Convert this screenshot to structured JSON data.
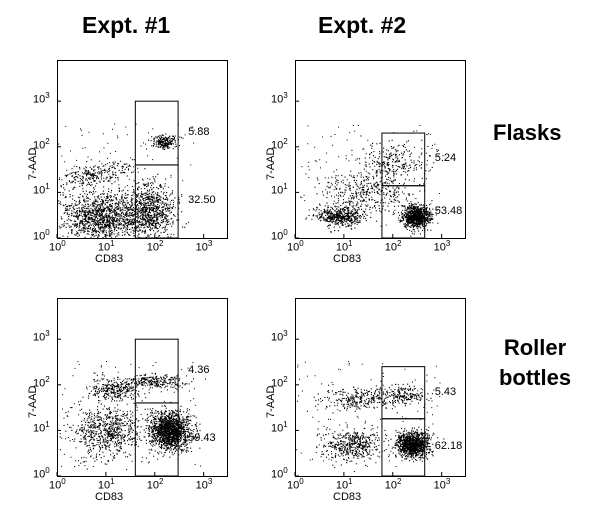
{
  "columns": [
    "Expt. #1",
    "Expt. #2"
  ],
  "rows": [
    "Flasks",
    "Roller\nbottles"
  ],
  "chart_data": [
    {
      "type": "scatter",
      "panel": "Flasks / Expt. #1",
      "xlabel": "CD83",
      "ylabel": "7-AAD",
      "xscale": "log",
      "yscale": "log",
      "xlim": [
        1,
        3000
      ],
      "ylim": [
        1,
        8000
      ],
      "xticks": [
        "10",
        "10",
        "10",
        "10"
      ],
      "xtick_exponents": [
        "0",
        "1",
        "2",
        "3"
      ],
      "yticks": [
        "10",
        "10",
        "10",
        "10"
      ],
      "ytick_exponents": [
        "0",
        "1",
        "2",
        "3"
      ],
      "gates": [
        {
          "x": [
            40,
            300
          ],
          "y": [
            40,
            1000
          ],
          "percent": "5.88"
        },
        {
          "x": [
            40,
            300
          ],
          "y": [
            1,
            40
          ],
          "percent": "32.50"
        }
      ],
      "populations": [
        {
          "cx": 8,
          "cy": 3,
          "sx": 0.42,
          "sy": 0.28,
          "n": 1300
        },
        {
          "cx": 80,
          "cy": 4,
          "sx": 0.25,
          "sy": 0.28,
          "n": 800
        },
        {
          "cx": 5,
          "cy": 25,
          "sx": 0.38,
          "sy": 0.12,
          "n": 260,
          "slope": 0.18
        },
        {
          "cx": 150,
          "cy": 130,
          "sx": 0.12,
          "sy": 0.08,
          "n": 200
        }
      ]
    },
    {
      "type": "scatter",
      "panel": "Flasks / Expt. #2",
      "xlabel": "CD83",
      "ylabel": "7-AAD",
      "xscale": "log",
      "yscale": "log",
      "xlim": [
        1,
        3000
      ],
      "ylim": [
        1,
        8000
      ],
      "xticks": [
        "10",
        "10",
        "10",
        "10"
      ],
      "xtick_exponents": [
        "0",
        "1",
        "2",
        "3"
      ],
      "yticks": [
        "10",
        "10",
        "10",
        "10"
      ],
      "ytick_exponents": [
        "0",
        "1",
        "2",
        "3"
      ],
      "gates": [
        {
          "x": [
            60,
            450
          ],
          "y": [
            14,
            200
          ],
          "percent": "5.24"
        },
        {
          "x": [
            60,
            450
          ],
          "y": [
            1,
            14
          ],
          "percent": "53.48"
        }
      ],
      "populations": [
        {
          "cx": 8,
          "cy": 3,
          "sx": 0.22,
          "sy": 0.1,
          "n": 500
        },
        {
          "cx": 300,
          "cy": 3,
          "sx": 0.14,
          "sy": 0.12,
          "n": 900
        },
        {
          "cx": 30,
          "cy": 10,
          "sx": 0.45,
          "sy": 0.25,
          "n": 400
        },
        {
          "cx": 100,
          "cy": 50,
          "sx": 0.35,
          "sy": 0.2,
          "n": 250
        }
      ]
    },
    {
      "type": "scatter",
      "panel": "Roller bottles / Expt. #1",
      "xlabel": "CD83",
      "ylabel": "7-AAD",
      "xscale": "log",
      "yscale": "log",
      "xlim": [
        1,
        3000
      ],
      "ylim": [
        1,
        8000
      ],
      "xticks": [
        "10",
        "10",
        "10",
        "10"
      ],
      "xtick_exponents": [
        "0",
        "1",
        "2",
        "3"
      ],
      "yticks": [
        "10",
        "10",
        "10",
        "10"
      ],
      "ytick_exponents": [
        "0",
        "1",
        "2",
        "3"
      ],
      "gates": [
        {
          "x": [
            40,
            300
          ],
          "y": [
            40,
            1000
          ],
          "percent": "4.36"
        },
        {
          "x": [
            40,
            300
          ],
          "y": [
            1,
            40
          ],
          "percent": "59.43"
        }
      ],
      "populations": [
        {
          "cx": 200,
          "cy": 10,
          "sx": 0.2,
          "sy": 0.2,
          "n": 1500
        },
        {
          "cx": 10,
          "cy": 10,
          "sx": 0.35,
          "sy": 0.28,
          "n": 700
        },
        {
          "cx": 15,
          "cy": 80,
          "sx": 0.25,
          "sy": 0.12,
          "n": 300
        },
        {
          "cx": 100,
          "cy": 120,
          "sx": 0.3,
          "sy": 0.08,
          "n": 250
        }
      ]
    },
    {
      "type": "scatter",
      "panel": "Roller bottles / Expt. #2",
      "xlabel": "CD83",
      "ylabel": "7-AAD",
      "xscale": "log",
      "yscale": "log",
      "xlim": [
        1,
        3000
      ],
      "ylim": [
        1,
        8000
      ],
      "xticks": [
        "10",
        "10",
        "10",
        "10"
      ],
      "xtick_exponents": [
        "0",
        "1",
        "2",
        "3"
      ],
      "yticks": [
        "10",
        "10",
        "10",
        "10"
      ],
      "ytick_exponents": [
        "0",
        "1",
        "2",
        "3"
      ],
      "gates": [
        {
          "x": [
            60,
            450
          ],
          "y": [
            18,
            250
          ],
          "percent": "5.43"
        },
        {
          "x": [
            60,
            450
          ],
          "y": [
            1,
            18
          ],
          "percent": "62.18"
        }
      ],
      "populations": [
        {
          "cx": 250,
          "cy": 5,
          "sx": 0.16,
          "sy": 0.14,
          "n": 1100
        },
        {
          "cx": 15,
          "cy": 5,
          "sx": 0.3,
          "sy": 0.18,
          "n": 450
        },
        {
          "cx": 20,
          "cy": 50,
          "sx": 0.4,
          "sy": 0.12,
          "n": 280
        },
        {
          "cx": 150,
          "cy": 60,
          "sx": 0.25,
          "sy": 0.12,
          "n": 200
        }
      ]
    }
  ]
}
